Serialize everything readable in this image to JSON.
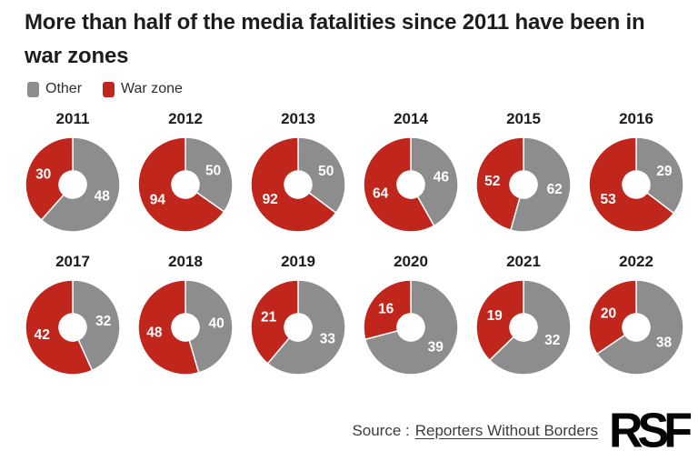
{
  "title": "More than half of the media fatalities since 2011 have been in war zones",
  "legend": {
    "items": [
      {
        "label": "Other",
        "color": "#8d8d8d"
      },
      {
        "label": "War zone",
        "color": "#c0261b"
      }
    ]
  },
  "chart_data": {
    "type": "pie",
    "subtype": "donut-grid",
    "title": "More than half of the media fatalities since 2011 have been in war zones",
    "legend_position": "top-left",
    "categories": [
      "Other",
      "War zone"
    ],
    "series_colors": {
      "other": "#8d8d8d",
      "war_zone": "#c0261b"
    },
    "label_color": "#ffffff",
    "slice_order": [
      "other",
      "war_zone"
    ],
    "start_angle_deg": 0,
    "direction": "clockwise",
    "charts": [
      {
        "year": "2011",
        "other": 48,
        "war_zone": 30
      },
      {
        "year": "2012",
        "other": 50,
        "war_zone": 94
      },
      {
        "year": "2013",
        "other": 50,
        "war_zone": 92
      },
      {
        "year": "2014",
        "other": 46,
        "war_zone": 64
      },
      {
        "year": "2015",
        "other": 62,
        "war_zone": 52
      },
      {
        "year": "2016",
        "other": 29,
        "war_zone": 53
      },
      {
        "year": "2017",
        "other": 32,
        "war_zone": 42
      },
      {
        "year": "2018",
        "other": 40,
        "war_zone": 48
      },
      {
        "year": "2019",
        "other": 33,
        "war_zone": 21
      },
      {
        "year": "2020",
        "other": 39,
        "war_zone": 16
      },
      {
        "year": "2021",
        "other": 32,
        "war_zone": 19
      },
      {
        "year": "2022",
        "other": 38,
        "war_zone": 20
      }
    ]
  },
  "footer": {
    "source_prefix": "Source :",
    "source_link_text": "Reporters Without Borders",
    "logo_text": "RSF"
  }
}
